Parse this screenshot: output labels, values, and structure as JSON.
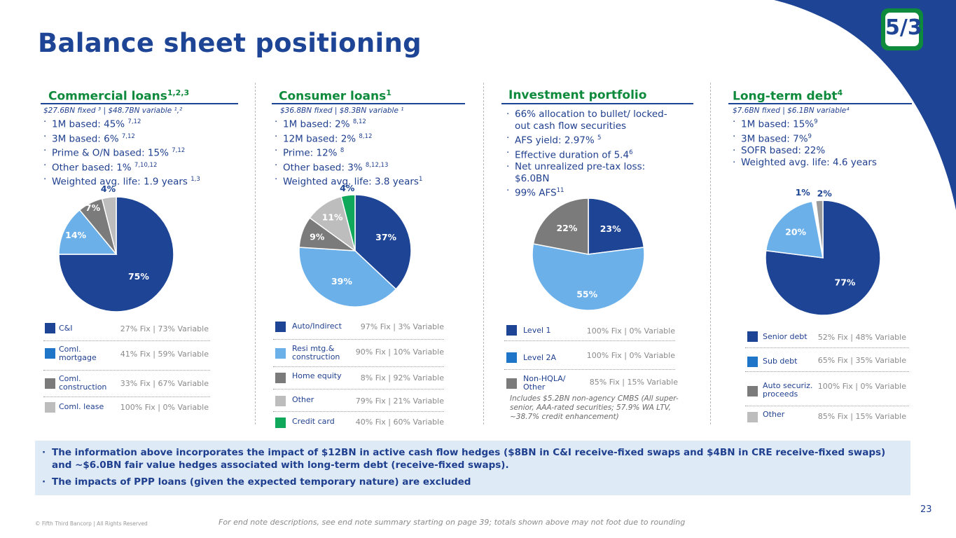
{
  "title": "Balance sheet positioning",
  "logo_text": "5/3",
  "page_number": "23",
  "copyright": "© Fifth Third Bancorp | All Rights Reserved",
  "footnote": "For end note descriptions, see end note summary starting on page 39; totals shown above may not foot due to rounding",
  "colors": {
    "navy": "#1e4595",
    "light_blue": "#6cb0ea",
    "mid_blue": "#1f76c8",
    "gray": "#808080",
    "light_gray": "#bdbdbd",
    "green": "#10a85a",
    "title_green": "#0e8a3c"
  },
  "sections": {
    "commercial": {
      "title": "Commercial loans",
      "title_sup": "1,2,3",
      "subline": "$27.6BN fixed ³ | $48.7BN variable ¹,²",
      "bullets": [
        {
          "text": "1M based: 45% ",
          "sup": "7,12"
        },
        {
          "text": "3M based: 6% ",
          "sup": "7,12"
        },
        {
          "text": "Prime & O/N based: 15% ",
          "sup": "7,12"
        },
        {
          "text": "Other based: 1% ",
          "sup": "7,10,12"
        },
        {
          "text": "Weighted avg. life: 1.9 years ",
          "sup": "1,3"
        }
      ],
      "legend": [
        {
          "name": "C&I",
          "value": "27% Fix | 73% Variable"
        },
        {
          "name": "Coml. mortgage",
          "value": "41% Fix | 59% Variable"
        },
        {
          "name": "Coml. construction",
          "value": "33% Fix | 67% Variable"
        },
        {
          "name": "Coml. lease",
          "value": "100% Fix | 0% Variable"
        }
      ]
    },
    "consumer": {
      "title": "Consumer loans",
      "title_sup": "1",
      "subline": "$36.8BN fixed | $8.3BN variable ¹",
      "bullets": [
        {
          "text": "1M based: 2% ",
          "sup": "8,12"
        },
        {
          "text": "12M based: 2% ",
          "sup": "8,12"
        },
        {
          "text": "Prime: 12% ",
          "sup": "8"
        },
        {
          "text": "Other based: 3% ",
          "sup": "8,12,13"
        },
        {
          "text": "Weighted avg. life: 3.8 years",
          "sup": "1"
        }
      ],
      "legend": [
        {
          "name": "Auto/Indirect",
          "value": "97% Fix | 3% Variable"
        },
        {
          "name": "Resi mtg.& construction",
          "value": "90% Fix | 10% Variable"
        },
        {
          "name": "Home equity",
          "value": "8% Fix | 92% Variable"
        },
        {
          "name": "Other",
          "value": "79% Fix | 21% Variable"
        },
        {
          "name": "Credit card",
          "value": "40% Fix | 60% Variable"
        }
      ]
    },
    "investment": {
      "title": "Investment portfolio",
      "bullets": [
        {
          "text": "66% allocation to bullet/ locked-out cash flow securities",
          "sup": ""
        },
        {
          "text": "AFS yield: 2.97% ",
          "sup": "5"
        },
        {
          "text": "Effective duration of 5.4",
          "sup": "6"
        },
        {
          "text": "Net unrealized pre-tax loss: $6.0BN",
          "sup": ""
        },
        {
          "text": "99% AFS",
          "sup": "11"
        }
      ],
      "legend": [
        {
          "name": "Level 1",
          "value": "100% Fix | 0% Variable"
        },
        {
          "name": "Level 2A",
          "value": "100% Fix | 0% Variable"
        },
        {
          "name": "Non-HQLA/ Other",
          "value": "85% Fix | 15% Variable"
        }
      ],
      "note": "Includes $5.2BN non-agency CMBS (All super-senior, AAA-rated securities; 57.9% WA LTV, ~38.7% credit enhancement)"
    },
    "debt": {
      "title": "Long-term debt",
      "title_sup": "4",
      "subline": "$7.6BN fixed | $6.1BN variable⁴",
      "bullets": [
        {
          "text": "1M based: 15%",
          "sup": "9"
        },
        {
          "text": "3M based: 7%",
          "sup": "9"
        },
        {
          "text": "SOFR based: 22%",
          "sup": ""
        },
        {
          "text": "Weighted avg. life: 4.6 years",
          "sup": ""
        }
      ],
      "legend": [
        {
          "name": "Senior debt",
          "value": "52% Fix | 48% Variable"
        },
        {
          "name": "Sub debt",
          "value": "65% Fix | 35% Variable"
        },
        {
          "name": "Auto securiz. proceeds",
          "value": "100% Fix | 0% Variable"
        },
        {
          "name": "Other",
          "value": "85% Fix | 15% Variable"
        }
      ]
    }
  },
  "banner": [
    "The information above incorporates the impact of $12BN in active cash flow hedges ($8BN in C&I receive-fixed swaps and $4BN in CRE receive-fixed swaps) and ~$6.0BN fair value hedges associated with long-term debt (receive-fixed swaps).",
    "The impacts of PPP loans (given the expected temporary nature) are excluded"
  ],
  "chart_data": [
    {
      "type": "pie",
      "title": "Commercial loans",
      "slices": [
        {
          "label": "C&I",
          "value": 75,
          "display": "75%",
          "color": "#1e4595",
          "text_color": "#ffffff"
        },
        {
          "label": "Coml. mortgage",
          "value": 14,
          "display": "14%",
          "color": "#6cb0ea",
          "text_color": "#ffffff"
        },
        {
          "label": "Coml. construction",
          "value": 7,
          "display": "7%",
          "color": "#7b7b7b",
          "text_color": "#ffffff"
        },
        {
          "label": "Coml. lease",
          "value": 4,
          "display": "4%",
          "color": "#bdbdbd",
          "text_color": "#1e4595"
        }
      ]
    },
    {
      "type": "pie",
      "title": "Consumer loans",
      "slices": [
        {
          "label": "Auto/Indirect",
          "value": 37,
          "display": "37%",
          "color": "#1e4595",
          "text_color": "#ffffff"
        },
        {
          "label": "Resi mtg.& construction",
          "value": 39,
          "display": "39%",
          "color": "#6cb0ea",
          "text_color": "#ffffff"
        },
        {
          "label": "Home equity",
          "value": 9,
          "display": "9%",
          "color": "#7b7b7b",
          "text_color": "#ffffff"
        },
        {
          "label": "Other",
          "value": 11,
          "display": "11%",
          "color": "#bdbdbd",
          "text_color": "#ffffff"
        },
        {
          "label": "Credit card",
          "value": 4,
          "display": "4%",
          "color": "#10a85a",
          "text_color": "#1e4595"
        }
      ]
    },
    {
      "type": "pie",
      "title": "Investment portfolio",
      "slices": [
        {
          "label": "Level 1",
          "value": 23,
          "display": "23%",
          "color": "#1e4595",
          "text_color": "#ffffff"
        },
        {
          "label": "Level 2A",
          "value": 55,
          "display": "55%",
          "color": "#6cb0ea",
          "text_color": "#ffffff"
        },
        {
          "label": "Non-HQLA/ Other",
          "value": 22,
          "display": "22%",
          "color": "#7b7b7b",
          "text_color": "#ffffff"
        }
      ]
    },
    {
      "type": "pie",
      "title": "Long-term debt",
      "slices": [
        {
          "label": "Senior debt",
          "value": 77,
          "display": "77%",
          "color": "#1e4595",
          "text_color": "#ffffff"
        },
        {
          "label": "Sub debt",
          "value": 20,
          "display": "20%",
          "color": "#6cb0ea",
          "text_color": "#ffffff"
        },
        {
          "label": "Auto securiz. proceeds",
          "value": 1,
          "display": "1%",
          "color": "#ffffff",
          "text_color": "#1e4595"
        },
        {
          "label": "Other",
          "value": 2,
          "display": "2%",
          "color": "#9a9a9a",
          "text_color": "#1e4595"
        }
      ]
    }
  ]
}
